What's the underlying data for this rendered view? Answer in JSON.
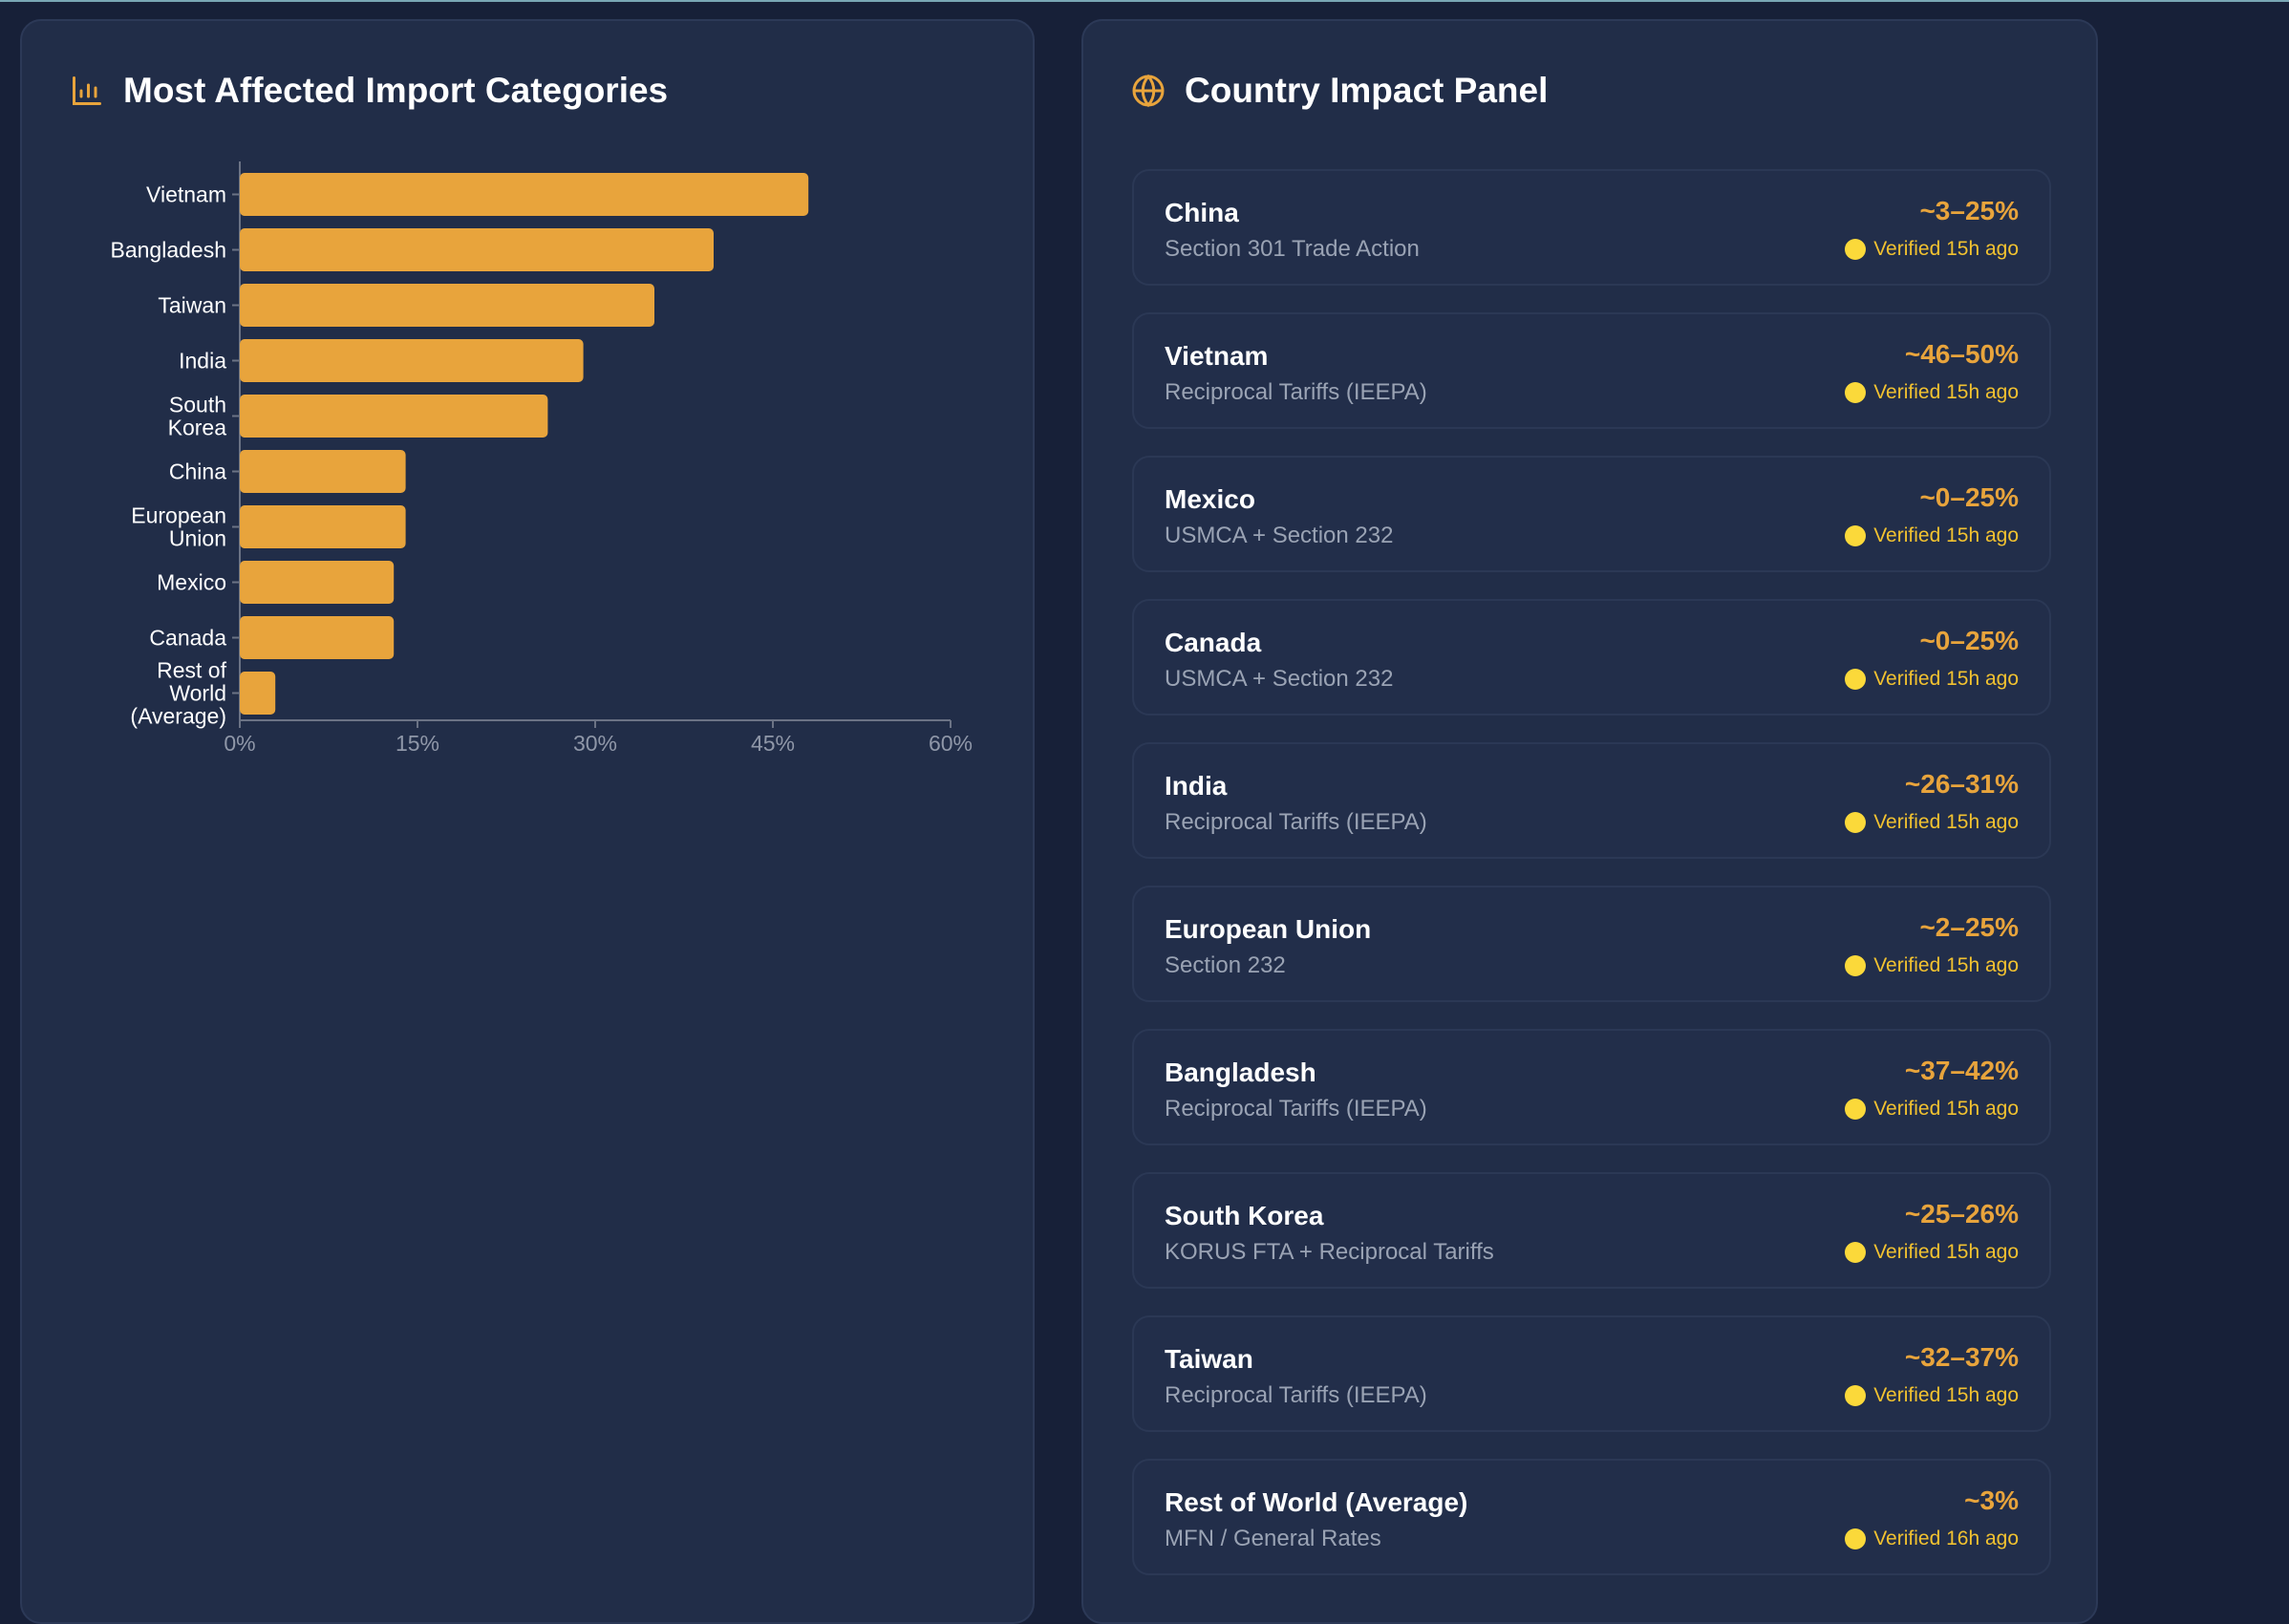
{
  "left_panel": {
    "title": "Most Affected Import Categories",
    "icon": "bar-chart-icon"
  },
  "chart_data": {
    "type": "bar",
    "orientation": "horizontal",
    "categories": [
      "Vietnam",
      "Bangladesh",
      "Taiwan",
      "India",
      "South Korea",
      "China",
      "European Union",
      "Mexico",
      "Canada",
      "Rest of World (Average)"
    ],
    "category_lines": [
      [
        "Vietnam"
      ],
      [
        "Bangladesh"
      ],
      [
        "Taiwan"
      ],
      [
        "India"
      ],
      [
        "South",
        "Korea"
      ],
      [
        "China"
      ],
      [
        "European",
        "Union"
      ],
      [
        "Mexico"
      ],
      [
        "Canada"
      ],
      [
        "Rest of",
        "World",
        "(Average)"
      ]
    ],
    "values": [
      48,
      40,
      35,
      29,
      26,
      14,
      14,
      13,
      13,
      3
    ],
    "xlim": [
      0,
      60
    ],
    "x_ticks": [
      "0%",
      "15%",
      "30%",
      "45%",
      "60%"
    ],
    "bar_color": "#e8a43c",
    "grid": false
  },
  "right_panel": {
    "title": "Country Impact Panel",
    "icon": "globe-icon",
    "countries": [
      {
        "name": "China",
        "program": "Section 301 Trade Action",
        "range": "~3–25%",
        "status": "Verified 15h ago"
      },
      {
        "name": "Vietnam",
        "program": "Reciprocal Tariffs (IEEPA)",
        "range": "~46–50%",
        "status": "Verified 15h ago"
      },
      {
        "name": "Mexico",
        "program": "USMCA + Section 232",
        "range": "~0–25%",
        "status": "Verified 15h ago"
      },
      {
        "name": "Canada",
        "program": "USMCA + Section 232",
        "range": "~0–25%",
        "status": "Verified 15h ago"
      },
      {
        "name": "India",
        "program": "Reciprocal Tariffs (IEEPA)",
        "range": "~26–31%",
        "status": "Verified 15h ago"
      },
      {
        "name": "European Union",
        "program": "Section 232",
        "range": "~2–25%",
        "status": "Verified 15h ago"
      },
      {
        "name": "Bangladesh",
        "program": "Reciprocal Tariffs (IEEPA)",
        "range": "~37–42%",
        "status": "Verified 15h ago"
      },
      {
        "name": "South Korea",
        "program": "KORUS FTA + Reciprocal Tariffs",
        "range": "~25–26%",
        "status": "Verified 15h ago"
      },
      {
        "name": "Taiwan",
        "program": "Reciprocal Tariffs (IEEPA)",
        "range": "~32–37%",
        "status": "Verified 15h ago"
      },
      {
        "name": "Rest of World (Average)",
        "program": "MFN / General Rates",
        "range": "~3%",
        "status": "Verified 16h ago"
      }
    ]
  }
}
